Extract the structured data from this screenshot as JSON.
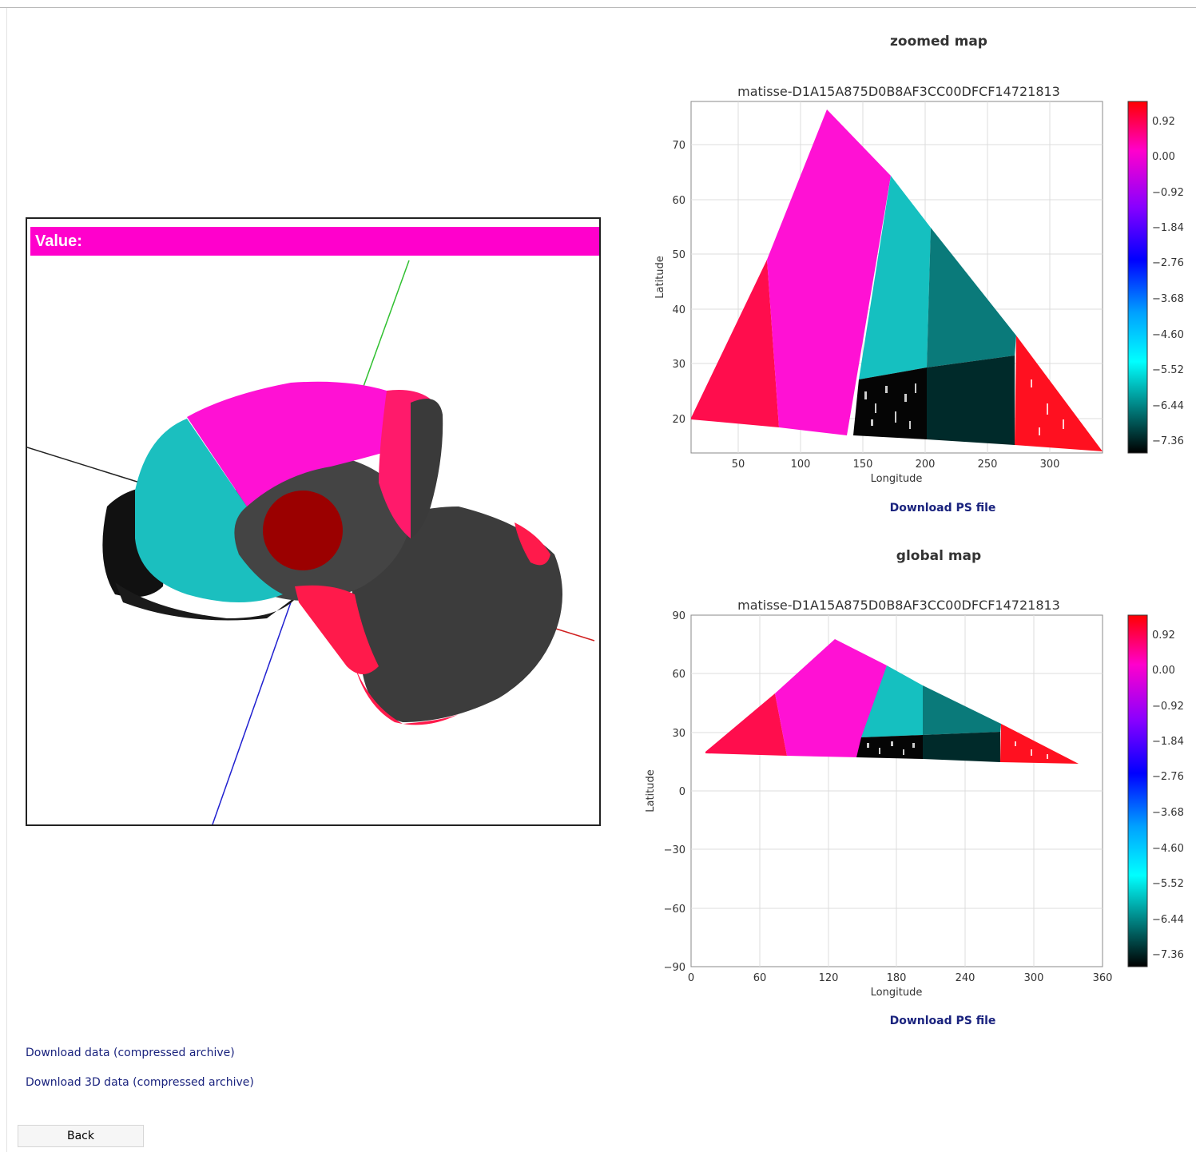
{
  "viewer": {
    "value_label": "Value:"
  },
  "colorbar": {
    "ticks": [
      "0.92",
      "0.00",
      "−0.92",
      "−1.84",
      "−2.76",
      "−3.68",
      "−4.60",
      "−5.52",
      "−6.44",
      "−7.36"
    ],
    "colors_top_to_bottom": [
      "#ff0000",
      "#ff00cc",
      "#8800ff",
      "#0000ff",
      "#00a0ff",
      "#00ffff",
      "#008080",
      "#000000"
    ]
  },
  "zoomed_map": {
    "heading": "zoomed map",
    "title": "matisse-D1A15A875D0B8AF3CC00DFCF14721813",
    "xlabel": "Longitude",
    "ylabel": "Latitude",
    "xticks": [
      "50",
      "100",
      "150",
      "200",
      "250",
      "300"
    ],
    "yticks": [
      "20",
      "30",
      "40",
      "50",
      "60",
      "70"
    ],
    "download_label": "Download PS file"
  },
  "global_map": {
    "heading": "global map",
    "title": "matisse-D1A15A875D0B8AF3CC00DFCF14721813",
    "xlabel": "Longitude",
    "ylabel": "Latitude",
    "xticks": [
      "0",
      "60",
      "120",
      "180",
      "240",
      "300",
      "360"
    ],
    "yticks": [
      "90",
      "60",
      "30",
      "0",
      "−30",
      "−60",
      "−90"
    ],
    "download_label": "Download PS file"
  },
  "links": {
    "download_data": "Download data (compressed archive)",
    "download_3d": "Download 3D data (compressed archive)"
  },
  "back_label": "Back"
}
